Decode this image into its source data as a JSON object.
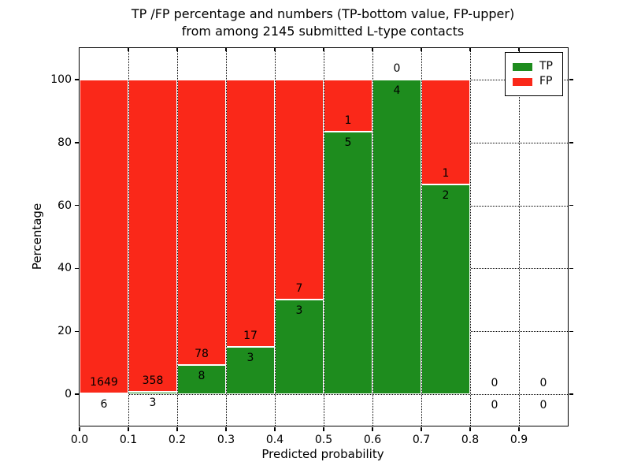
{
  "chart_data": {
    "type": "bar",
    "stacked": true,
    "title_line1": "TP /FP percentage and numbers (TP-bottom value, FP-upper)",
    "title_line2": "from among 2145 submitted L-type contacts",
    "total_submitted_contacts": 2145,
    "xlabel": "Predicted probability",
    "ylabel": "Percentage",
    "xlim": [
      0.0,
      1.0
    ],
    "ylim": [
      -10,
      110
    ],
    "x_ticks": [
      "0.0",
      "0.1",
      "0.2",
      "0.3",
      "0.4",
      "0.5",
      "0.6",
      "0.7",
      "0.8",
      "0.9"
    ],
    "y_ticks": [
      "0",
      "20",
      "40",
      "60",
      "80",
      "100"
    ],
    "grid": "dotted",
    "colors": {
      "tp": "#1e8c1e",
      "fp": "#fa2819"
    },
    "legend": {
      "position": "upper-right",
      "entries": [
        {
          "label": "TP",
          "color_key": "tp"
        },
        {
          "label": "FP",
          "color_key": "fp"
        }
      ]
    },
    "bins": [
      {
        "x_start": 0.0,
        "x_end": 0.1,
        "tp": 6,
        "fp": 1649,
        "tp_pct": 0.36
      },
      {
        "x_start": 0.1,
        "x_end": 0.2,
        "tp": 3,
        "fp": 358,
        "tp_pct": 0.83
      },
      {
        "x_start": 0.2,
        "x_end": 0.3,
        "tp": 8,
        "fp": 78,
        "tp_pct": 9.3
      },
      {
        "x_start": 0.3,
        "x_end": 0.4,
        "tp": 3,
        "fp": 17,
        "tp_pct": 15.0
      },
      {
        "x_start": 0.4,
        "x_end": 0.5,
        "tp": 3,
        "fp": 7,
        "tp_pct": 30.0
      },
      {
        "x_start": 0.5,
        "x_end": 0.6,
        "tp": 5,
        "fp": 1,
        "tp_pct": 83.33
      },
      {
        "x_start": 0.6,
        "x_end": 0.7,
        "tp": 4,
        "fp": 0,
        "tp_pct": 100.0
      },
      {
        "x_start": 0.7,
        "x_end": 0.8,
        "tp": 2,
        "fp": 1,
        "tp_pct": 66.67
      },
      {
        "x_start": 0.8,
        "x_end": 0.9,
        "tp": 0,
        "fp": 0,
        "tp_pct": null
      },
      {
        "x_start": 0.9,
        "x_end": 1.0,
        "tp": 0,
        "fp": 0,
        "tp_pct": null
      }
    ]
  }
}
